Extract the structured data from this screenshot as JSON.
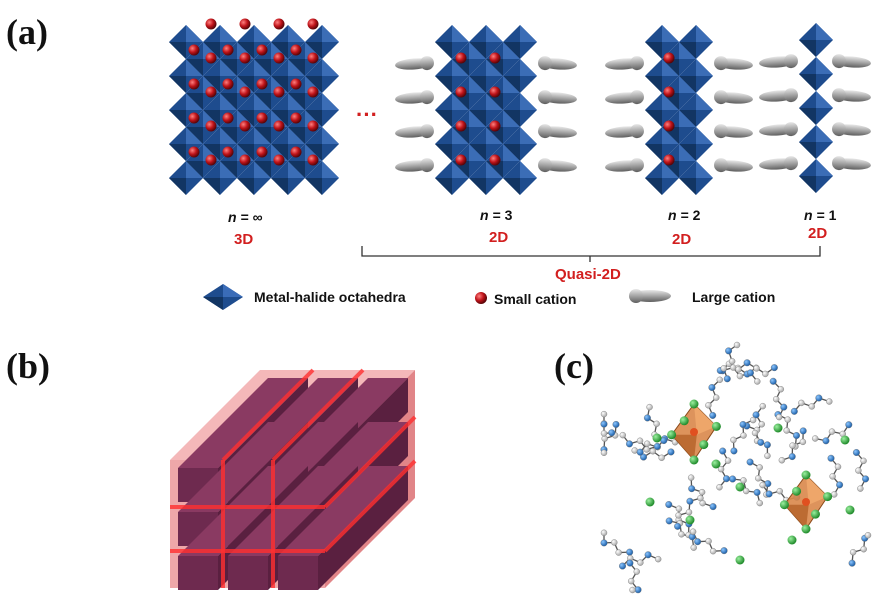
{
  "panels": {
    "a": {
      "label": "(a)"
    },
    "b": {
      "label": "(b)"
    },
    "c": {
      "label": "(c)"
    }
  },
  "structures": [
    {
      "n_prefix": "n",
      "n_value": "= ∞",
      "dim": "3D",
      "cols": 4,
      "large_cations": false
    },
    {
      "n_prefix": "n",
      "n_value": "= 3",
      "dim": "2D",
      "cols": 3,
      "large_cations": true
    },
    {
      "n_prefix": "n",
      "n_value": "= 2",
      "dim": "2D",
      "cols": 2,
      "large_cations": true
    },
    {
      "n_prefix": "n",
      "n_value": "= 1",
      "dim": "2D",
      "cols": 1,
      "large_cations": true
    }
  ],
  "ellipsis": "···",
  "bracket_label": "Quasi-2D",
  "legend": {
    "octahedra": "Metal-halide octahedra",
    "small_cation": "Small cation",
    "large_cation": "Large cation"
  },
  "colors": {
    "octahedron": "#1e4c8e",
    "octahedron_dark": "#123563",
    "small_cation": "#c0141a",
    "large_cation": "#9a9a9a",
    "accent_red": "#d21f1f",
    "wire_block": "#6e2a4f",
    "wire_shell": "#e0676a",
    "cluster_octa": "#d9874a",
    "atom_green": "#2fb43a",
    "atom_blue": "#2a7fd4",
    "atom_white": "#e9e9e9"
  }
}
